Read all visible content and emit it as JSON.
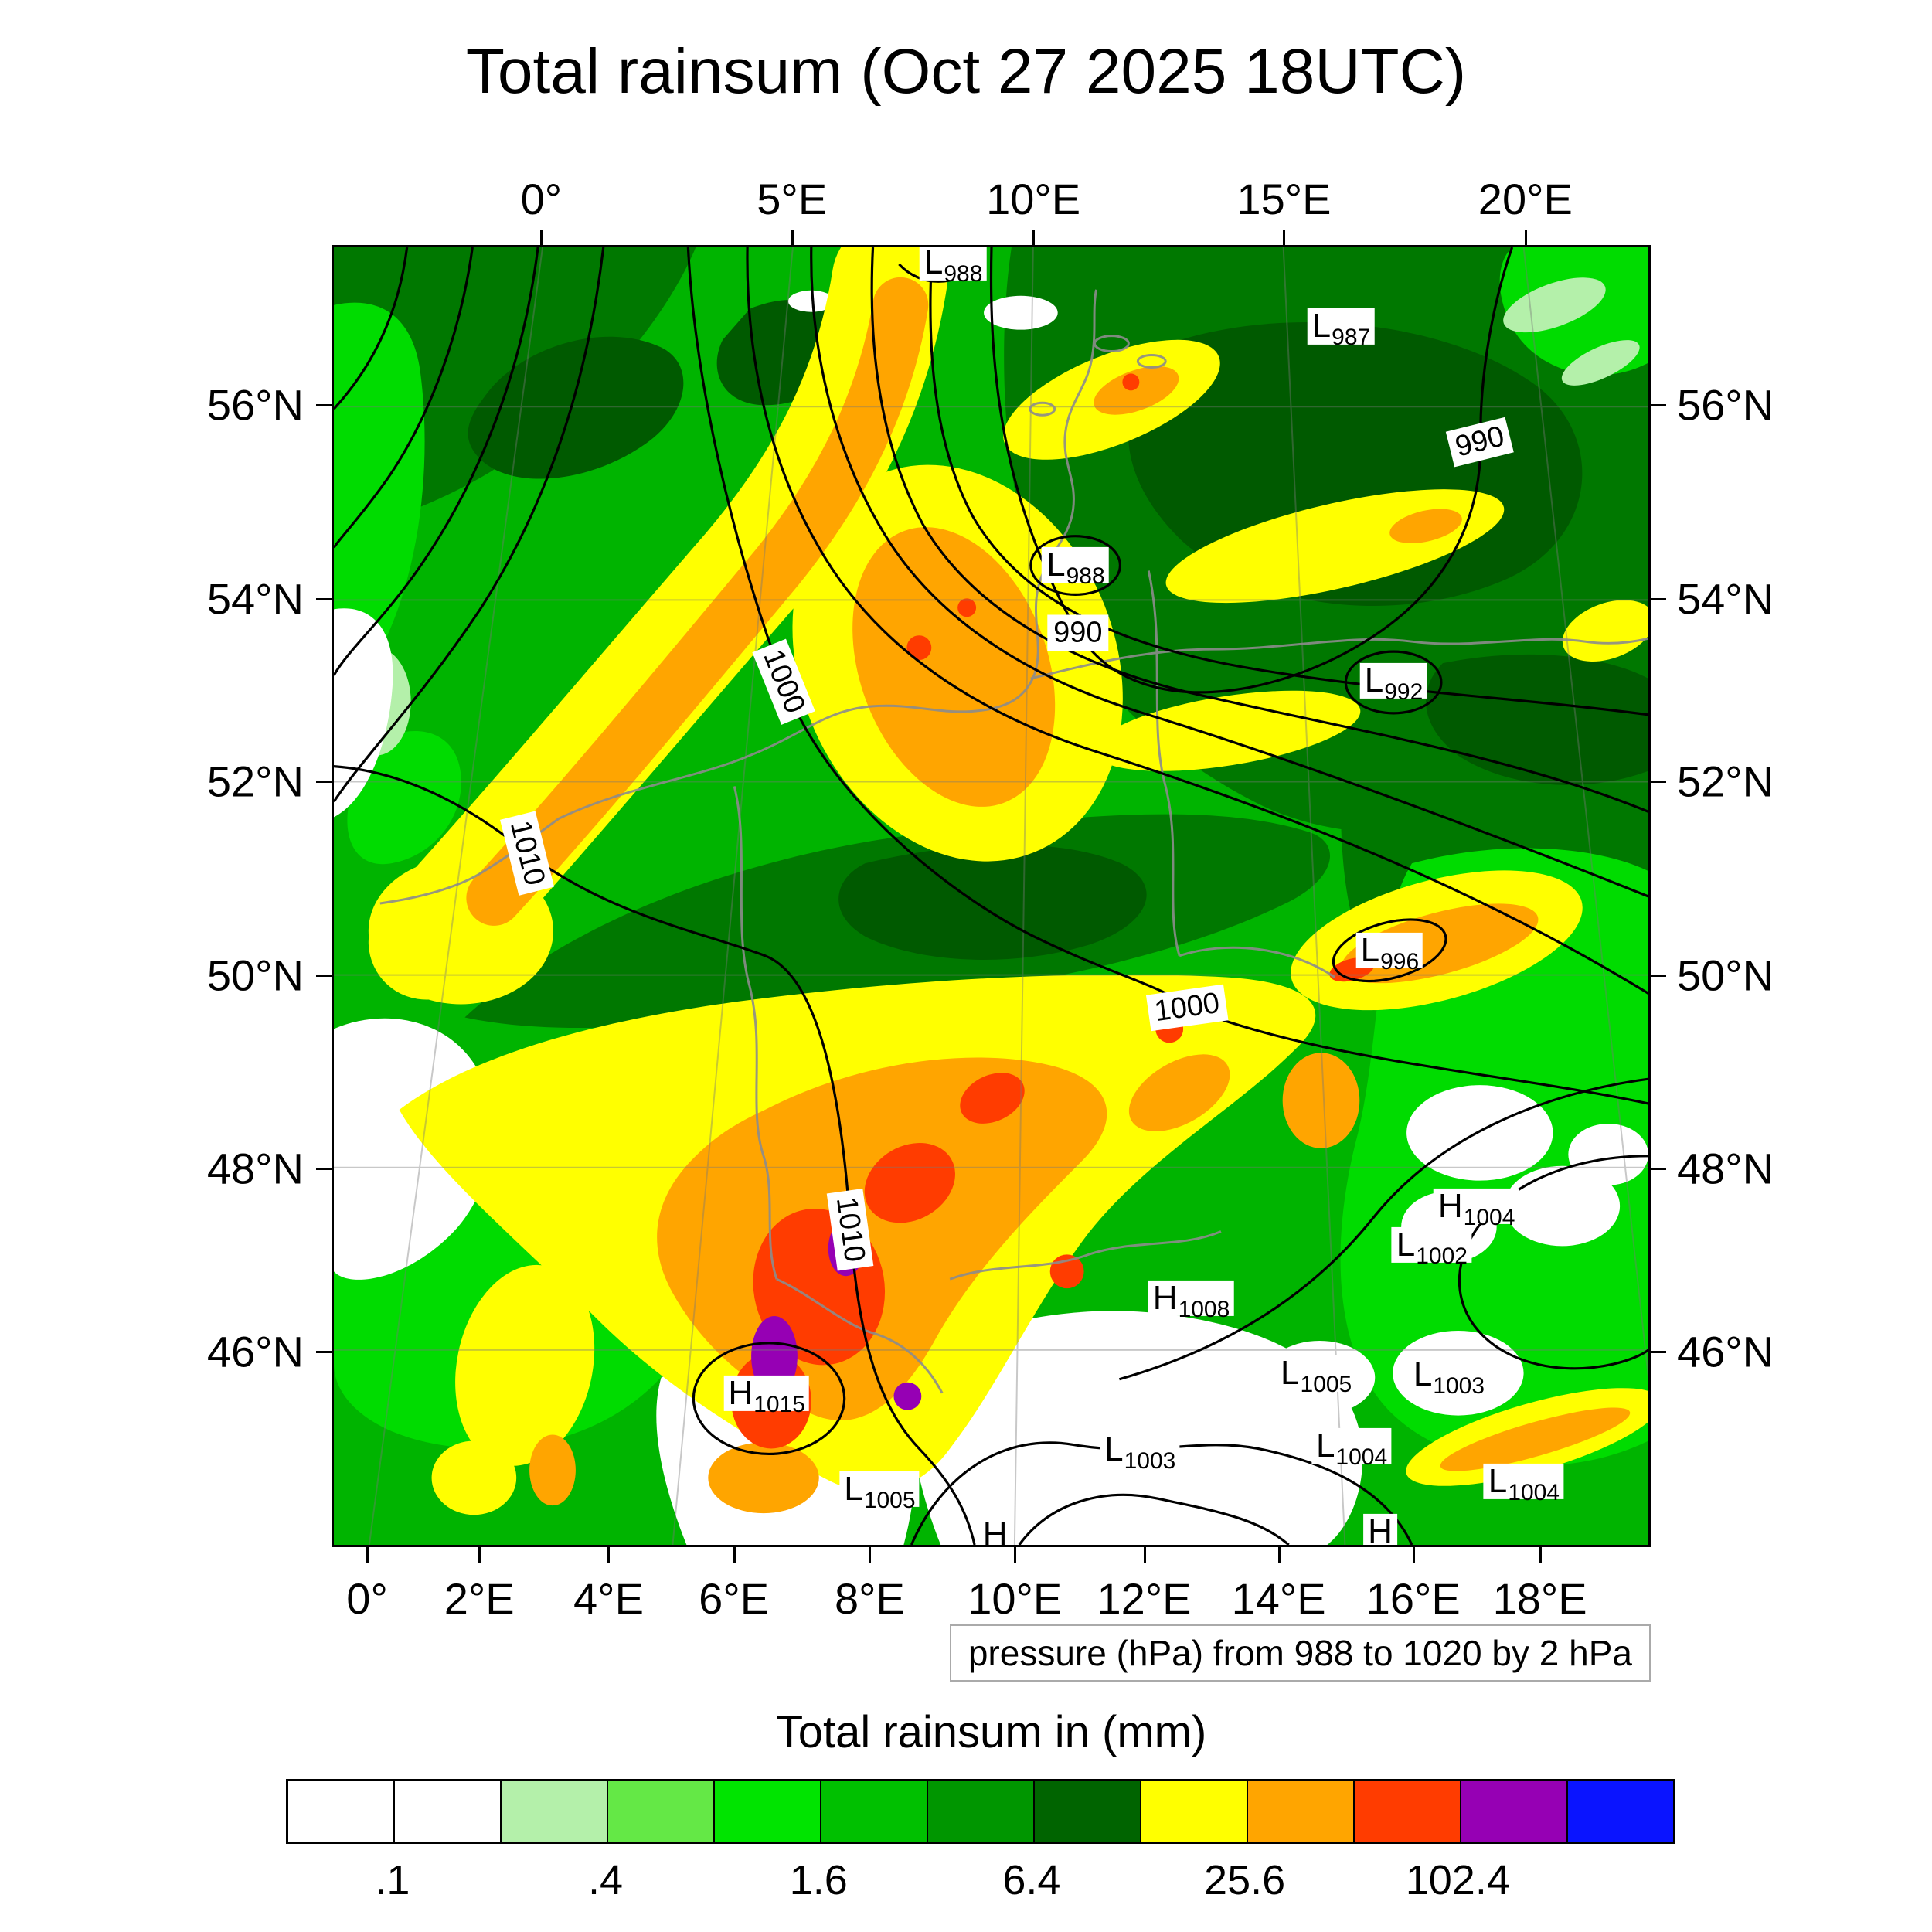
{
  "title": "Total rainsum (Oct 27 2025 18UTC)",
  "pressure_caption": "pressure (hPa) from 988 to 1020 by 2 hPa",
  "legend": {
    "title": "Total rainsum in (mm)",
    "labels": [
      ".1",
      ".4",
      "1.6",
      "6.4",
      "25.6",
      "102.4"
    ],
    "colors": [
      "#ffffff",
      "#ffffff",
      "#b4f0aa",
      "#64e846",
      "#00e400",
      "#00c000",
      "#009600",
      "#006400",
      "#ffff00",
      "#ffa500",
      "#ff3c00",
      "#9600b4",
      "#0a14ff"
    ]
  },
  "axes": {
    "top": [
      {
        "label": "0°",
        "u": 0.159
      },
      {
        "label": "5°E",
        "u": 0.349
      },
      {
        "label": "10°E",
        "u": 0.532
      },
      {
        "label": "15°E",
        "u": 0.722
      },
      {
        "label": "20°E",
        "u": 0.905
      }
    ],
    "bottom": [
      {
        "label": "0°",
        "u": 0.027
      },
      {
        "label": "2°E",
        "u": 0.112
      },
      {
        "label": "4°E",
        "u": 0.21
      },
      {
        "label": "6°E",
        "u": 0.305
      },
      {
        "label": "8°E",
        "u": 0.408
      },
      {
        "label": "10°E",
        "u": 0.518
      },
      {
        "label": "12°E",
        "u": 0.616
      },
      {
        "label": "14°E",
        "u": 0.718
      },
      {
        "label": "16°E",
        "u": 0.82
      },
      {
        "label": "18°E",
        "u": 0.916
      }
    ],
    "left": [
      {
        "label": "56°N",
        "v": 0.123
      },
      {
        "label": "54°N",
        "v": 0.272
      },
      {
        "label": "52°N",
        "v": 0.412
      },
      {
        "label": "50°N",
        "v": 0.561
      },
      {
        "label": "48°N",
        "v": 0.709
      },
      {
        "label": "46°N",
        "v": 0.85
      }
    ],
    "right": [
      {
        "label": "56°N",
        "v": 0.123
      },
      {
        "label": "54°N",
        "v": 0.272
      },
      {
        "label": "52°N",
        "v": 0.412
      },
      {
        "label": "50°N",
        "v": 0.561
      },
      {
        "label": "48°N",
        "v": 0.709
      },
      {
        "label": "46°N",
        "v": 0.85
      }
    ]
  },
  "pressure_centers": [
    {
      "type": "L",
      "value": "988",
      "u": 0.471,
      "v": 0.012
    },
    {
      "type": "L",
      "value": "987",
      "u": 0.766,
      "v": 0.061
    },
    {
      "type": "L",
      "value": "988",
      "u": 0.564,
      "v": 0.245
    },
    {
      "type": "L",
      "value": "992",
      "u": 0.806,
      "v": 0.334
    },
    {
      "type": "L",
      "value": "996",
      "u": 0.803,
      "v": 0.542
    },
    {
      "type": "H",
      "value": "1004",
      "u": 0.869,
      "v": 0.739
    },
    {
      "type": "L",
      "value": "1002",
      "u": 0.835,
      "v": 0.769
    },
    {
      "type": "H",
      "value": "1008",
      "u": 0.652,
      "v": 0.81
    },
    {
      "type": "L",
      "value": "1005",
      "u": 0.747,
      "v": 0.868
    },
    {
      "type": "L",
      "value": "1003",
      "u": 0.848,
      "v": 0.869
    },
    {
      "type": "H",
      "value": "1015",
      "u": 0.329,
      "v": 0.883
    },
    {
      "type": "L",
      "value": "1003",
      "u": 0.613,
      "v": 0.927
    },
    {
      "type": "L",
      "value": "1004",
      "u": 0.774,
      "v": 0.924
    },
    {
      "type": "L",
      "value": "1005",
      "u": 0.415,
      "v": 0.957
    },
    {
      "type": "L",
      "value": "1004",
      "u": 0.905,
      "v": 0.951
    },
    {
      "type": "H",
      "value": "",
      "u": 0.503,
      "v": 0.992
    },
    {
      "type": "H",
      "value": "",
      "u": 0.796,
      "v": 0.99
    }
  ],
  "contour_labels": [
    {
      "text": "990",
      "u": 0.872,
      "v": 0.15,
      "rot": -14
    },
    {
      "text": "990",
      "u": 0.566,
      "v": 0.297,
      "rot": 0
    },
    {
      "text": "1000",
      "u": 0.342,
      "v": 0.335,
      "rot": 68
    },
    {
      "text": "1010",
      "u": 0.147,
      "v": 0.467,
      "rot": 76
    },
    {
      "text": "1000",
      "u": 0.649,
      "v": 0.586,
      "rot": -8
    },
    {
      "text": "1010",
      "u": 0.393,
      "v": 0.757,
      "rot": 82
    }
  ]
}
